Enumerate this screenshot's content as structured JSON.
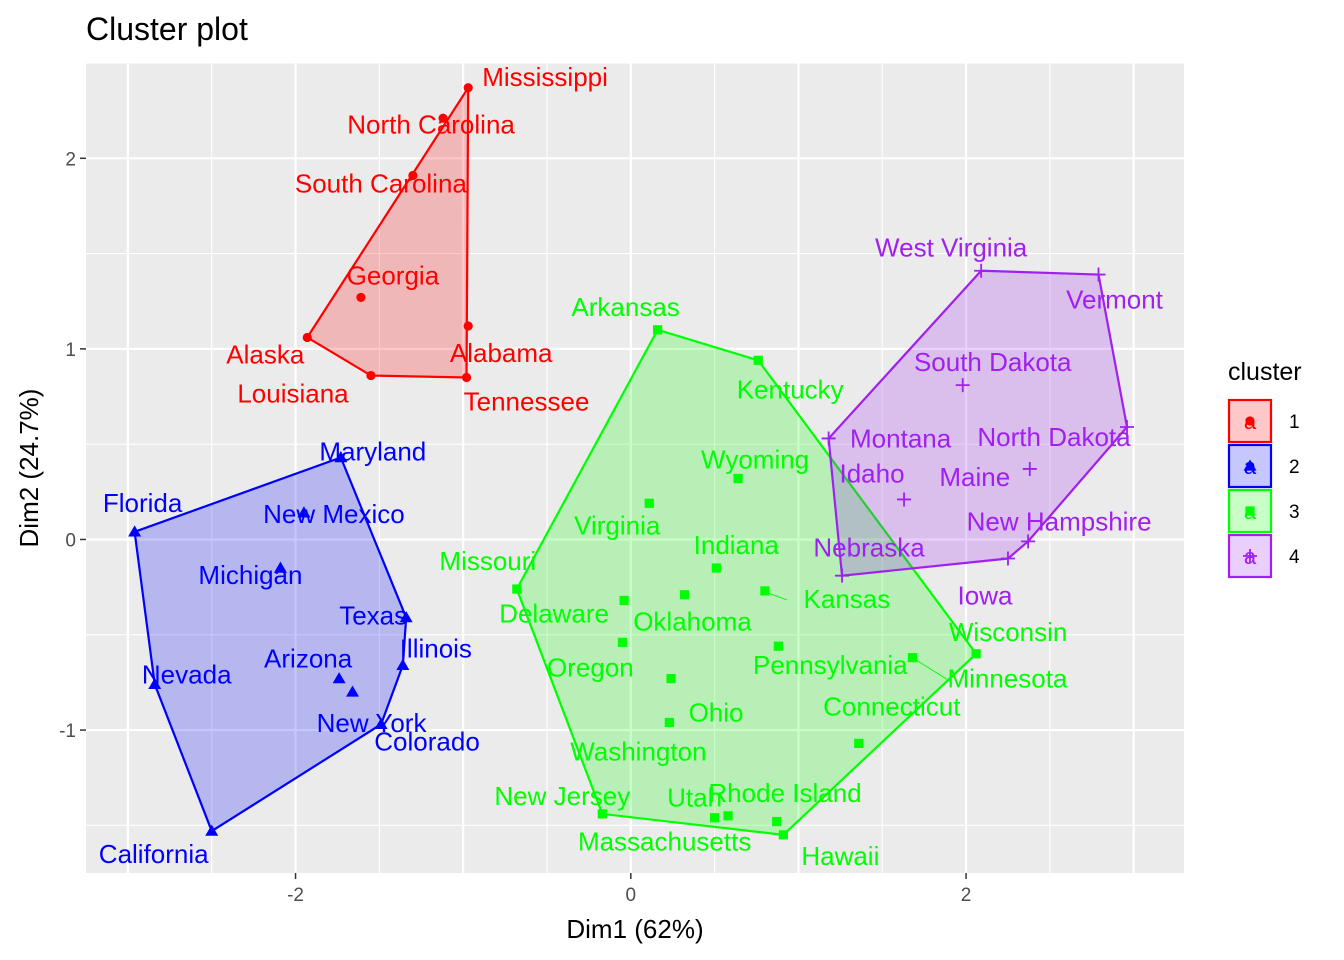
{
  "chart_data": {
    "type": "scatter",
    "title": "Cluster plot",
    "xlabel": "Dim1 (62%)",
    "ylabel": "Dim2 (24.7%)",
    "xlim": [
      -3.25,
      3.3
    ],
    "ylim": [
      -1.75,
      2.5
    ],
    "x_ticks": [
      -2,
      0,
      2
    ],
    "y_ticks": [
      -1,
      0,
      1,
      2
    ],
    "grid": true,
    "legend": {
      "title": "cluster",
      "position": "right",
      "key_glyph": "a",
      "entries": [
        "1",
        "2",
        "3",
        "4"
      ]
    },
    "series": [
      {
        "name": "1",
        "color": "#ff0000",
        "marker": "circle",
        "points": [
          {
            "label": "Mississippi",
            "x": -0.97,
            "y": 2.37
          },
          {
            "label": "North Carolina",
            "x": -1.12,
            "y": 2.21
          },
          {
            "label": "South Carolina",
            "x": -1.3,
            "y": 1.91
          },
          {
            "label": "Georgia",
            "x": -1.61,
            "y": 1.27
          },
          {
            "label": "Alaska",
            "x": -1.93,
            "y": 1.06
          },
          {
            "label": "Alabama",
            "x": -0.97,
            "y": 1.12
          },
          {
            "label": "Louisiana",
            "x": -1.55,
            "y": 0.86
          },
          {
            "label": "Tennessee",
            "x": -0.98,
            "y": 0.85
          }
        ],
        "hull": [
          "Mississippi",
          "Tennessee",
          "Louisiana",
          "Alaska"
        ]
      },
      {
        "name": "2",
        "color": "#0000ff",
        "marker": "triangle",
        "points": [
          {
            "label": "Maryland",
            "x": -1.73,
            "y": 0.43
          },
          {
            "label": "New Mexico",
            "x": -1.95,
            "y": 0.14
          },
          {
            "label": "Florida",
            "x": -2.96,
            "y": 0.04
          },
          {
            "label": "Michigan",
            "x": -2.09,
            "y": -0.15
          },
          {
            "label": "Texas",
            "x": -1.34,
            "y": -0.41
          },
          {
            "label": "Illinois",
            "x": -1.36,
            "y": -0.66
          },
          {
            "label": "Arizona",
            "x": -1.74,
            "y": -0.73
          },
          {
            "label": "New York",
            "x": -1.66,
            "y": -0.8
          },
          {
            "label": "Nevada",
            "x": -2.84,
            "y": -0.76
          },
          {
            "label": "Colorado",
            "x": -1.49,
            "y": -0.97
          },
          {
            "label": "California",
            "x": -2.5,
            "y": -1.53
          }
        ],
        "hull": [
          "Florida",
          "Maryland",
          "Texas",
          "Illinois",
          "Colorado",
          "California",
          "Nevada"
        ]
      },
      {
        "name": "3",
        "color": "#00ff00",
        "marker": "square",
        "points": [
          {
            "label": "Arkansas",
            "x": 0.16,
            "y": 1.1
          },
          {
            "label": "Kentucky",
            "x": 0.76,
            "y": 0.94
          },
          {
            "label": "Wyoming",
            "x": 0.64,
            "y": 0.32
          },
          {
            "label": "Virginia",
            "x": 0.11,
            "y": 0.19
          },
          {
            "label": "Indiana",
            "x": 0.51,
            "y": -0.15
          },
          {
            "label": "Missouri",
            "x": -0.68,
            "y": -0.26
          },
          {
            "label": "Kansas",
            "x": 0.8,
            "y": -0.27
          },
          {
            "label": "Delaware",
            "x": -0.04,
            "y": -0.32
          },
          {
            "label": "Oklahoma",
            "x": 0.32,
            "y": -0.29
          },
          {
            "label": "Oregon",
            "x": -0.05,
            "y": -0.54
          },
          {
            "label": "Pennsylvania",
            "x": 0.88,
            "y": -0.56
          },
          {
            "label": "Wisconsin",
            "x": 2.06,
            "y": -0.6
          },
          {
            "label": "Minnesota",
            "x": 1.68,
            "y": -0.62
          },
          {
            "label": "Ohio",
            "x": 0.24,
            "y": -0.73
          },
          {
            "label": "Washington",
            "x": 0.23,
            "y": -0.96
          },
          {
            "label": "Connecticut",
            "x": 1.36,
            "y": -1.07
          },
          {
            "label": "New Jersey",
            "x": -0.17,
            "y": -1.44
          },
          {
            "label": "Utah",
            "x": 0.5,
            "y": -1.46
          },
          {
            "label": "Rhode Island",
            "x": 0.58,
            "y": -1.45
          },
          {
            "label": "Massachusetts",
            "x": 0.87,
            "y": -1.48
          },
          {
            "label": "Hawaii",
            "x": 0.91,
            "y": -1.55
          }
        ],
        "hull": [
          "Arkansas",
          "Kentucky",
          "Wisconsin",
          "Hawaii",
          "New Jersey",
          "Missouri"
        ]
      },
      {
        "name": "4",
        "color": "#a020f0",
        "marker": "cross",
        "points": [
          {
            "label": "West Virginia",
            "x": 2.09,
            "y": 1.41
          },
          {
            "label": "Vermont",
            "x": 2.79,
            "y": 1.39
          },
          {
            "label": "South Dakota",
            "x": 1.98,
            "y": 0.81
          },
          {
            "label": "Montana",
            "x": 1.18,
            "y": 0.53
          },
          {
            "label": "North Dakota",
            "x": 2.96,
            "y": 0.59
          },
          {
            "label": "Maine",
            "x": 2.38,
            "y": 0.37
          },
          {
            "label": "Idaho",
            "x": 1.63,
            "y": 0.21
          },
          {
            "label": "New Hampshire",
            "x": 2.37,
            "y": -0.01
          },
          {
            "label": "Nebraska",
            "x": 1.26,
            "y": -0.19
          },
          {
            "label": "Iowa",
            "x": 2.25,
            "y": -0.1
          }
        ],
        "hull": [
          "West Virginia",
          "Vermont",
          "North Dakota",
          "New Hampshire",
          "Iowa",
          "Nebraska",
          "Montana"
        ]
      }
    ]
  }
}
